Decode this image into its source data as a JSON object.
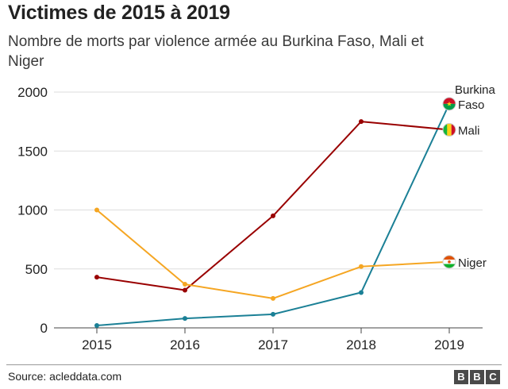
{
  "header": {
    "title": "Victimes de 2015 à 2019",
    "subtitle": "Nombre de morts par violence armée au Burkina Faso, Mali et Niger"
  },
  "footer": {
    "source": "Source: acleddata.com",
    "logo": [
      "B",
      "B",
      "C"
    ]
  },
  "chart_data": {
    "type": "line",
    "x": [
      "2015",
      "2016",
      "2017",
      "2018",
      "2019"
    ],
    "ylim": [
      0,
      2000
    ],
    "yticks": [
      0,
      500,
      1000,
      1500,
      2000
    ],
    "grid": true,
    "legend": "inline labels at line ends",
    "series": [
      {
        "name": "Burkina Faso",
        "label_lines": [
          "Burkina",
          "Faso"
        ],
        "color": "#1b8096",
        "flag": "burkina-faso-flag-icon",
        "values": [
          20,
          80,
          115,
          300,
          1900
        ]
      },
      {
        "name": "Mali",
        "label_lines": [
          "Mali"
        ],
        "color": "#990000",
        "flag": "mali-flag-icon",
        "values": [
          430,
          320,
          950,
          1750,
          1680
        ]
      },
      {
        "name": "Niger",
        "label_lines": [
          "Niger"
        ],
        "color": "#f5a623",
        "flag": "niger-flag-icon",
        "values": [
          1000,
          370,
          250,
          520,
          560
        ]
      }
    ]
  }
}
